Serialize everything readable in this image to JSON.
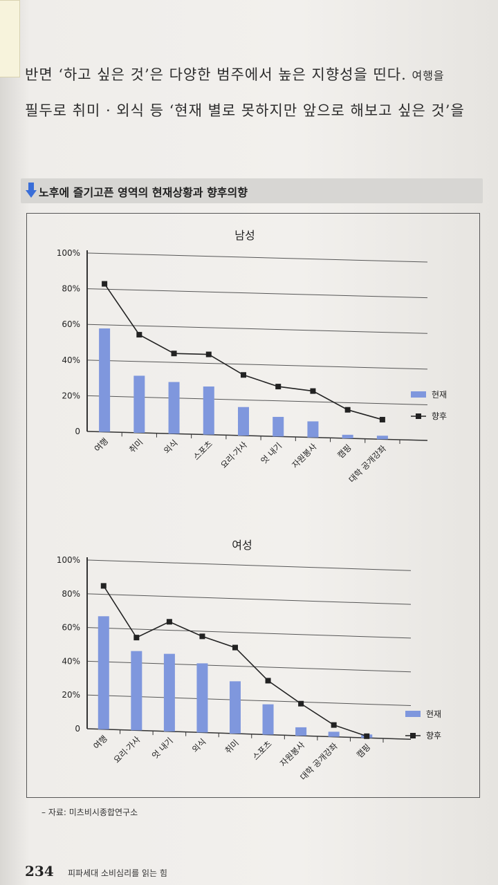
{
  "body_text": {
    "line1_main": "반면 ‘하고 싶은 것’은 다양한 범주에서 높은 지향성을 띤다.",
    "line1_tail": "여행을",
    "line2_main": "필두로 취미 · 외식 등 ‘현재 별로 못하지만 앞으로 해보고 싶은 것’을"
  },
  "section_title": "노후에 즐기고픈 영역의 현재상황과 향후의향",
  "colors": {
    "bar": "#7f97dd",
    "line": "#222222",
    "accent_arrow": "#3a6ed8"
  },
  "chart_data": [
    {
      "type": "bar",
      "title": "남성",
      "ylim": [
        0,
        100
      ],
      "y_ticks": [
        "100%",
        "80%",
        "60%",
        "40%",
        "20%",
        "0"
      ],
      "categories": [
        "여행",
        "취미",
        "외식",
        "스포츠",
        "요리·가사",
        "엇 내기",
        "자원봉사",
        "캠핑",
        "대학 공개강좌"
      ],
      "series": [
        {
          "name": "현재",
          "type": "bar",
          "values": [
            58,
            32,
            29,
            27,
            16,
            11,
            9,
            2,
            2
          ]
        },
        {
          "name": "향후",
          "type": "line",
          "values": [
            83,
            55,
            45,
            45,
            34,
            28,
            26,
            16,
            11
          ]
        }
      ],
      "legend": "right"
    },
    {
      "type": "bar",
      "title": "여성",
      "ylim": [
        0,
        100
      ],
      "y_ticks": [
        "100%",
        "80%",
        "60%",
        "40%",
        "20%",
        "0"
      ],
      "categories": [
        "여행",
        "요리·가사",
        "엇 내기",
        "외식",
        "취미",
        "스포츠",
        "자원봉사",
        "대학 공개강좌",
        "캠핑"
      ],
      "series": [
        {
          "name": "현재",
          "type": "bar",
          "values": [
            67,
            47,
            46,
            41,
            31,
            18,
            5,
            3,
            2
          ]
        },
        {
          "name": "향후",
          "type": "line",
          "values": [
            85,
            55,
            65,
            57,
            51,
            32,
            19,
            7,
            1
          ]
        }
      ],
      "legend": "right"
    }
  ],
  "source": "– 자료: 미츠비시종합연구소",
  "footer": {
    "page_number": "234",
    "book_title": "피파세대 소비심리를 읽는 힘"
  }
}
